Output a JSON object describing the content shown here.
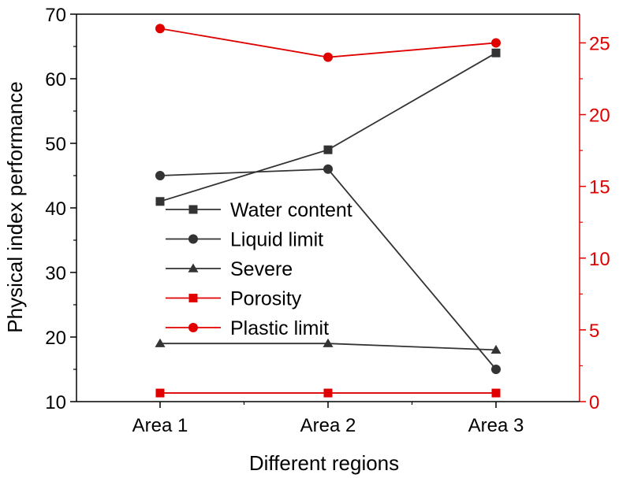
{
  "chart_data": {
    "type": "line",
    "title": "",
    "xlabel": "Different regions",
    "ylabel": "Physical index performance",
    "categories": [
      "Area 1",
      "Area 2",
      "Area 3"
    ],
    "ylim": [
      10,
      70
    ],
    "y2lim": [
      0,
      27
    ],
    "yticks": [
      10,
      20,
      30,
      40,
      50,
      60,
      70
    ],
    "y2ticks": [
      0,
      5,
      10,
      15,
      20,
      25
    ],
    "legend_position": "center-left",
    "series": [
      {
        "name": "Water content",
        "axis": "left",
        "marker": "square",
        "color": "#333333",
        "values": [
          41,
          49,
          64
        ]
      },
      {
        "name": "Liquid limit",
        "axis": "left",
        "marker": "circle",
        "color": "#333333",
        "values": [
          45,
          46,
          15
        ]
      },
      {
        "name": "Severe",
        "axis": "left",
        "marker": "triangle",
        "color": "#333333",
        "values": [
          19,
          19,
          18
        ]
      },
      {
        "name": "Porosity",
        "axis": "right",
        "marker": "square",
        "color": "#e00000",
        "values": [
          0.6,
          0.6,
          0.6
        ]
      },
      {
        "name": "Plastic limit",
        "axis": "right",
        "marker": "circle",
        "color": "#e00000",
        "values": [
          26,
          24,
          25
        ]
      }
    ],
    "colors": {
      "left_axis": "#000000",
      "right_axis": "#e00000"
    }
  }
}
